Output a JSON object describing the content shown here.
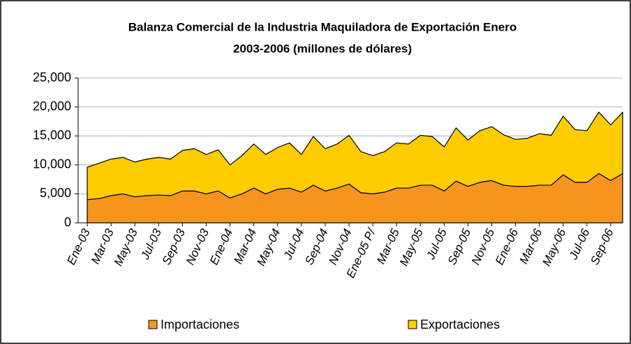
{
  "chart_data": {
    "type": "area",
    "stacked": true,
    "title": "Balanza Comercial de la Industria Maquiladora de Exportación Enero",
    "subtitle": "2003-2006  (millones de dólares)",
    "categories": [
      "Ene-03",
      null,
      "Mar-03",
      null,
      "May-03",
      null,
      "Jul-03",
      null,
      "Sep-03",
      null,
      "Nov-03",
      null,
      "Ene-04",
      null,
      "Mar-04",
      null,
      "May-04",
      null,
      "Jul-04",
      null,
      "Sep-04",
      null,
      "Nov-04",
      null,
      "Ene-05 P/",
      null,
      "Mar-05",
      null,
      "May-05",
      null,
      "Jul-05",
      null,
      "Sep-05",
      null,
      "Nov-05",
      null,
      "Ene-06",
      null,
      "Mar-06",
      null,
      "May-06",
      null,
      "Jul-06",
      null,
      "Sep-06",
      null
    ],
    "series": [
      {
        "name": "Importaciones",
        "color": "#f7941d",
        "values": [
          4000,
          4200,
          4700,
          5000,
          4500,
          4700,
          4800,
          4700,
          5500,
          5500,
          5000,
          5500,
          4300,
          5000,
          6000,
          5000,
          5800,
          6000,
          5300,
          6500,
          5500,
          6000,
          6700,
          5200,
          5000,
          5300,
          6000,
          6000,
          6500,
          6500,
          5500,
          7200,
          6300,
          7000,
          7300,
          6500,
          6300,
          6300,
          6500,
          6500,
          8300,
          7000,
          7000,
          8500,
          7300,
          8500
        ]
      },
      {
        "name": "Exportaciones",
        "color": "#ffcc00",
        "values": [
          5600,
          6100,
          6300,
          6300,
          6000,
          6300,
          6500,
          6300,
          7000,
          7300,
          6800,
          7100,
          5700,
          6600,
          7600,
          6800,
          7200,
          7800,
          6500,
          8400,
          7300,
          7600,
          8400,
          7100,
          6600,
          7000,
          7800,
          7600,
          8600,
          8400,
          7600,
          9200,
          8000,
          8900,
          9300,
          8700,
          8100,
          8300,
          8900,
          8600,
          10100,
          9100,
          8900,
          10600,
          9600,
          10600
        ]
      }
    ],
    "ylim": [
      0,
      25000
    ],
    "yticks": [
      0,
      {
        "value": 5000,
        "label": "5,000"
      },
      {
        "value": 10000,
        "label": "10,000"
      },
      {
        "value": 15000,
        "label": "15,000"
      },
      {
        "value": 20000,
        "label": "20,000"
      },
      {
        "value": 25000,
        "label": "25,000"
      }
    ],
    "grid": true,
    "legend": "bottom"
  }
}
